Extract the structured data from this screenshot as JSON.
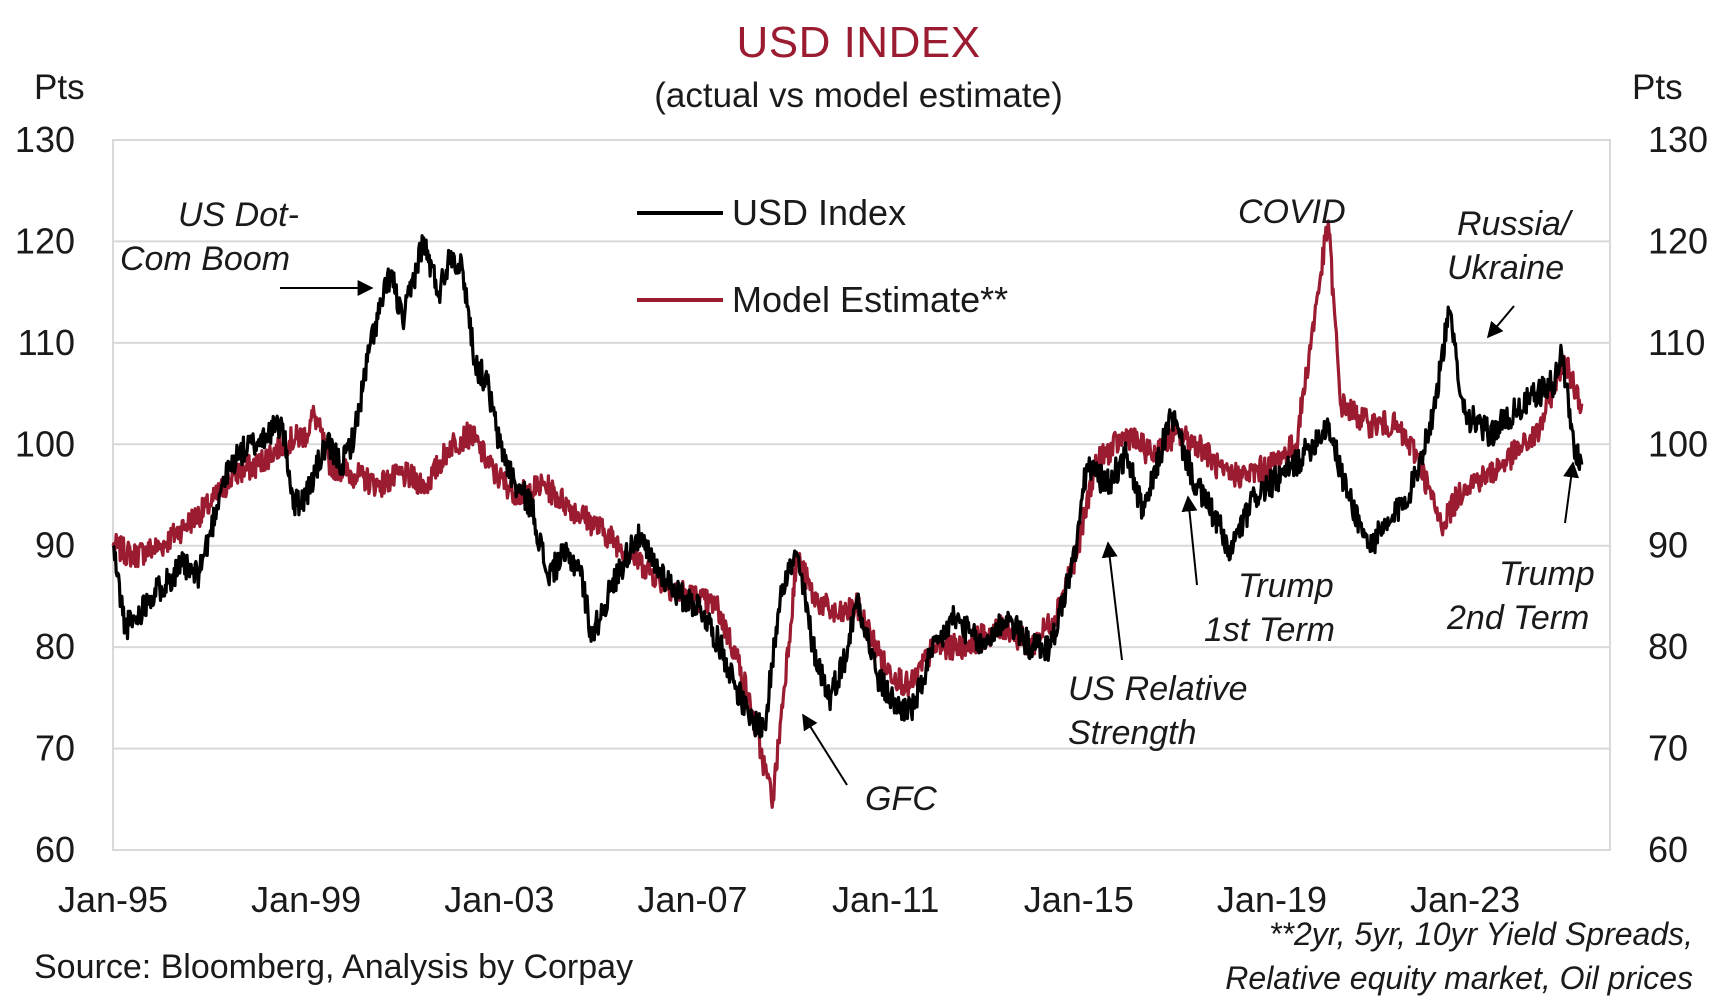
{
  "chart_data": {
    "type": "line",
    "title": "USD INDEX",
    "subtitle": "(actual vs model estimate)",
    "ylabel_left": "Pts",
    "ylabel_right": "Pts",
    "ylim": [
      60,
      130
    ],
    "yticks": [
      60,
      70,
      80,
      90,
      100,
      110,
      120,
      130
    ],
    "xlim": [
      "Jan-95",
      "Jan-26"
    ],
    "xtick_labels": [
      "Jan-95",
      "Jan-99",
      "Jan-03",
      "Jan-07",
      "Jan-11",
      "Jan-15",
      "Jan-19",
      "Jan-23"
    ],
    "grid": "horizontal",
    "legend_position": "top-center",
    "colors": {
      "usd": "#000000",
      "model": "#9b1b30",
      "title": "#9b1b30",
      "grid": "#d9d9d9"
    },
    "series": [
      {
        "name": "USD Index",
        "color": "#000000",
        "points": [
          [
            "1995-01",
            90
          ],
          [
            "1995-04",
            82
          ],
          [
            "1995-07",
            83
          ],
          [
            "1995-10",
            85
          ],
          [
            "1996-01",
            86
          ],
          [
            "1996-06",
            88
          ],
          [
            "1996-10",
            87
          ],
          [
            "1997-01",
            91
          ],
          [
            "1997-04",
            96
          ],
          [
            "1997-08",
            99
          ],
          [
            "1997-12",
            100
          ],
          [
            "1998-03",
            101
          ],
          [
            "1998-07",
            102
          ],
          [
            "1998-10",
            94
          ],
          [
            "1999-01",
            95
          ],
          [
            "1999-06",
            100
          ],
          [
            "1999-10",
            98
          ],
          [
            "2000-01",
            101
          ],
          [
            "2000-05",
            110
          ],
          [
            "2000-10",
            117
          ],
          [
            "2001-01",
            112
          ],
          [
            "2001-06",
            120
          ],
          [
            "2001-10",
            115
          ],
          [
            "2002-01",
            119
          ],
          [
            "2002-04",
            117
          ],
          [
            "2002-07",
            108
          ],
          [
            "2002-10",
            106
          ],
          [
            "2003-01",
            100
          ],
          [
            "2003-05",
            96
          ],
          [
            "2003-09",
            94
          ],
          [
            "2004-01",
            87
          ],
          [
            "2004-05",
            89
          ],
          [
            "2004-09",
            88
          ],
          [
            "2004-12",
            81
          ],
          [
            "2005-05",
            86
          ],
          [
            "2005-11",
            91
          ],
          [
            "2006-04",
            88
          ],
          [
            "2006-10",
            85
          ],
          [
            "2007-03",
            84
          ],
          [
            "2007-08",
            80
          ],
          [
            "2007-12",
            76
          ],
          [
            "2008-03",
            73
          ],
          [
            "2008-07",
            72
          ],
          [
            "2008-11",
            86
          ],
          [
            "2009-03",
            89
          ],
          [
            "2009-07",
            80
          ],
          [
            "2009-11",
            75
          ],
          [
            "2010-03",
            79
          ],
          [
            "2010-06",
            85
          ],
          [
            "2010-11",
            77
          ],
          [
            "2011-04",
            74
          ],
          [
            "2011-08",
            74
          ],
          [
            "2011-12",
            79
          ],
          [
            "2012-06",
            83
          ],
          [
            "2013-01",
            80
          ],
          [
            "2013-07",
            83
          ],
          [
            "2014-01",
            80
          ],
          [
            "2014-06",
            80
          ],
          [
            "2014-12",
            89
          ],
          [
            "2015-03",
            98
          ],
          [
            "2015-08",
            96
          ],
          [
            "2016-01",
            99
          ],
          [
            "2016-05",
            93
          ],
          [
            "2016-12",
            103
          ],
          [
            "2017-06",
            96
          ],
          [
            "2017-12",
            92
          ],
          [
            "2018-02",
            89
          ],
          [
            "2018-09",
            95
          ],
          [
            "2019-04",
            97
          ],
          [
            "2019-09",
            99
          ],
          [
            "2020-03",
            102
          ],
          [
            "2020-07",
            96
          ],
          [
            "2021-01",
            90
          ],
          [
            "2021-06",
            92
          ],
          [
            "2021-12",
            96
          ],
          [
            "2022-05",
            103
          ],
          [
            "2022-09",
            113
          ],
          [
            "2023-01",
            103
          ],
          [
            "2023-07",
            101
          ],
          [
            "2024-01",
            103
          ],
          [
            "2024-07",
            105
          ],
          [
            "2024-11",
            106
          ],
          [
            "2025-01",
            109
          ],
          [
            "2025-04",
            100
          ],
          [
            "2025-06",
            98
          ]
        ]
      },
      {
        "name": "Model Estimate**",
        "color": "#9b1b30",
        "points": [
          [
            "1995-01",
            90
          ],
          [
            "1995-06",
            89
          ],
          [
            "1996-01",
            90
          ],
          [
            "1996-07",
            92
          ],
          [
            "1997-01",
            94
          ],
          [
            "1997-07",
            97
          ],
          [
            "1998-01",
            98
          ],
          [
            "1998-07",
            100
          ],
          [
            "1999-01",
            101
          ],
          [
            "1999-03",
            103
          ],
          [
            "1999-07",
            98
          ],
          [
            "2000-01",
            97
          ],
          [
            "2000-07",
            96
          ],
          [
            "2001-01",
            97
          ],
          [
            "2001-07",
            96
          ],
          [
            "2002-01",
            100
          ],
          [
            "2002-06",
            101
          ],
          [
            "2002-12",
            97
          ],
          [
            "2003-06",
            95
          ],
          [
            "2003-12",
            96
          ],
          [
            "2004-06",
            94
          ],
          [
            "2005-01",
            92
          ],
          [
            "2005-07",
            90
          ],
          [
            "2006-01",
            88
          ],
          [
            "2006-07",
            86
          ],
          [
            "2007-01",
            85
          ],
          [
            "2007-07",
            84
          ],
          [
            "2008-01",
            78
          ],
          [
            "2008-07",
            68
          ],
          [
            "2008-09",
            65
          ],
          [
            "2009-03",
            89
          ],
          [
            "2009-07",
            85
          ],
          [
            "2010-01",
            83
          ],
          [
            "2010-06",
            84
          ],
          [
            "2011-01",
            78
          ],
          [
            "2011-07",
            76
          ],
          [
            "2012-01",
            80
          ],
          [
            "2012-07",
            80
          ],
          [
            "2013-01",
            81
          ],
          [
            "2013-07",
            82
          ],
          [
            "2014-01",
            80
          ],
          [
            "2014-07",
            83
          ],
          [
            "2015-01",
            90
          ],
          [
            "2015-05",
            98
          ],
          [
            "2016-01",
            101
          ],
          [
            "2016-07",
            99
          ],
          [
            "2017-01",
            101
          ],
          [
            "2017-07",
            100
          ],
          [
            "2018-01",
            97
          ],
          [
            "2018-07",
            97
          ],
          [
            "2019-01",
            98
          ],
          [
            "2019-07",
            100
          ],
          [
            "2020-03",
            122
          ],
          [
            "2020-06",
            104
          ],
          [
            "2021-01",
            102
          ],
          [
            "2021-07",
            102
          ],
          [
            "2022-01",
            99
          ],
          [
            "2022-07",
            92
          ],
          [
            "2023-01",
            96
          ],
          [
            "2023-07",
            97
          ],
          [
            "2024-01",
            99
          ],
          [
            "2024-07",
            101
          ],
          [
            "2025-01",
            108
          ],
          [
            "2025-03",
            107
          ],
          [
            "2025-06",
            104
          ]
        ]
      }
    ],
    "annotations": [
      {
        "lines": [
          "US Dot-",
          "Com Boom"
        ]
      },
      {
        "lines": [
          "GFC"
        ]
      },
      {
        "lines": [
          "US Relative",
          "Strength"
        ]
      },
      {
        "lines": [
          "COVID"
        ]
      },
      {
        "lines": [
          "Trump",
          "1st Term"
        ]
      },
      {
        "lines": [
          "Russia/",
          "Ukraine"
        ]
      },
      {
        "lines": [
          "Trump",
          "2nd Term"
        ]
      }
    ]
  },
  "source": "Source: Bloomberg, Analysis by Corpay",
  "footnote_lines": [
    "**2yr, 5yr, 10yr Yield Spreads,",
    "Relative equity market, Oil prices"
  ]
}
